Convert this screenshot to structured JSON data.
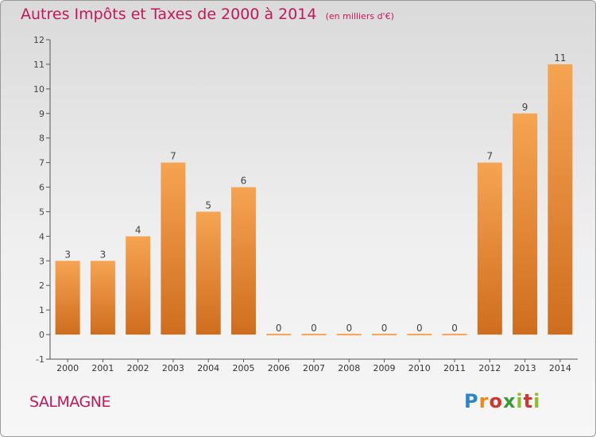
{
  "header": {
    "title": "Autres Impôts et Taxes de 2000 à 2014",
    "subtitle": "(en milliers d'€)"
  },
  "footer": {
    "city": "SALMAGNE",
    "logo_text": "Proxiti"
  },
  "chart_data": {
    "type": "bar",
    "title": "Autres Impôts et Taxes de 2000 à 2014",
    "subtitle": "(en milliers d'€)",
    "xlabel": "",
    "ylabel": "",
    "categories": [
      "2000",
      "2001",
      "2002",
      "2003",
      "2004",
      "2005",
      "2006",
      "2007",
      "2008",
      "2009",
      "2010",
      "2011",
      "2012",
      "2013",
      "2014"
    ],
    "values": [
      3,
      3,
      4,
      7,
      5,
      6,
      0,
      0,
      0,
      0,
      0,
      0,
      7,
      9,
      11
    ],
    "ylim": [
      -1,
      12
    ],
    "yticks": [
      -1,
      0,
      1,
      2,
      3,
      4,
      5,
      6,
      7,
      8,
      9,
      10,
      11,
      12
    ],
    "grid": false,
    "colors": {
      "bar_top": "#f6a452",
      "bar_bottom": "#cf6d1e",
      "text": "#c2185b",
      "axis": "#555555"
    }
  }
}
